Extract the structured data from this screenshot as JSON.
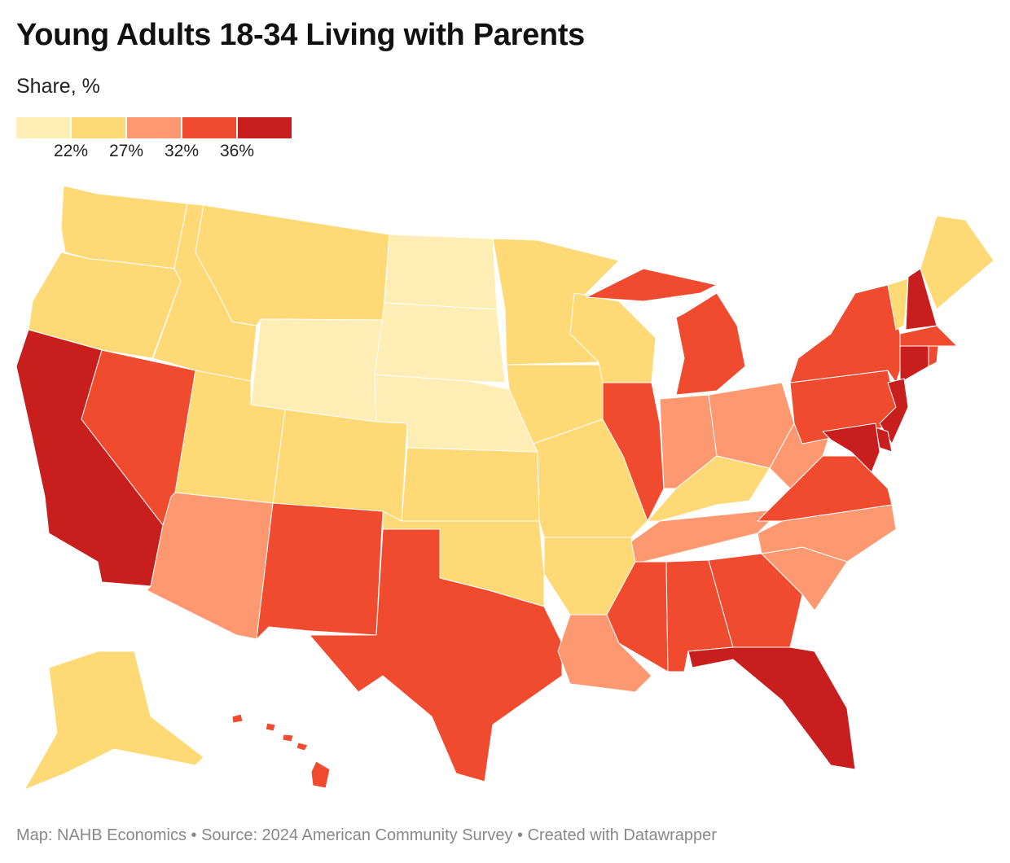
{
  "title": "Young Adults 18-34 Living with Parents",
  "subtitle": "Share, %",
  "legend": {
    "colors": [
      "#feedb4",
      "#fed976",
      "#fd9870",
      "#f04a2f",
      "#c81e1e"
    ],
    "labels": [
      "22%",
      "27%",
      "32%",
      "36%"
    ]
  },
  "footer": "Map: NAHB Economics • Source: 2024 American Community Survey  • Created with Datawrapper",
  "map_data": {
    "type": "choropleth",
    "region": "United States",
    "value_bins": [
      "<22%",
      "22–27%",
      "27–32%",
      "32–36%",
      ">36%"
    ],
    "states": {
      "WA": 1,
      "OR": 1,
      "CA": 4,
      "NV": 3,
      "ID": 1,
      "MT": 1,
      "WY": 0,
      "UT": 1,
      "CO": 1,
      "AZ": 2,
      "NM": 3,
      "ND": 0,
      "SD": 0,
      "NE": 0,
      "KS": 1,
      "OK": 1,
      "TX": 3,
      "MN": 1,
      "IA": 1,
      "MO": 1,
      "AR": 1,
      "LA": 2,
      "WI": 1,
      "IL": 3,
      "MI": 3,
      "IN": 2,
      "OH": 2,
      "KY": 1,
      "TN": 2,
      "MS": 3,
      "AL": 3,
      "GA": 3,
      "FL": 4,
      "SC": 2,
      "NC": 2,
      "VA": 3,
      "WV": 2,
      "PA": 3,
      "NY": 3,
      "VT": 1,
      "NH": 4,
      "ME": 1,
      "MA": 3,
      "RI": 3,
      "CT": 4,
      "NJ": 4,
      "DE": 4,
      "MD": 4,
      "AK": 1,
      "HI": 3
    }
  }
}
